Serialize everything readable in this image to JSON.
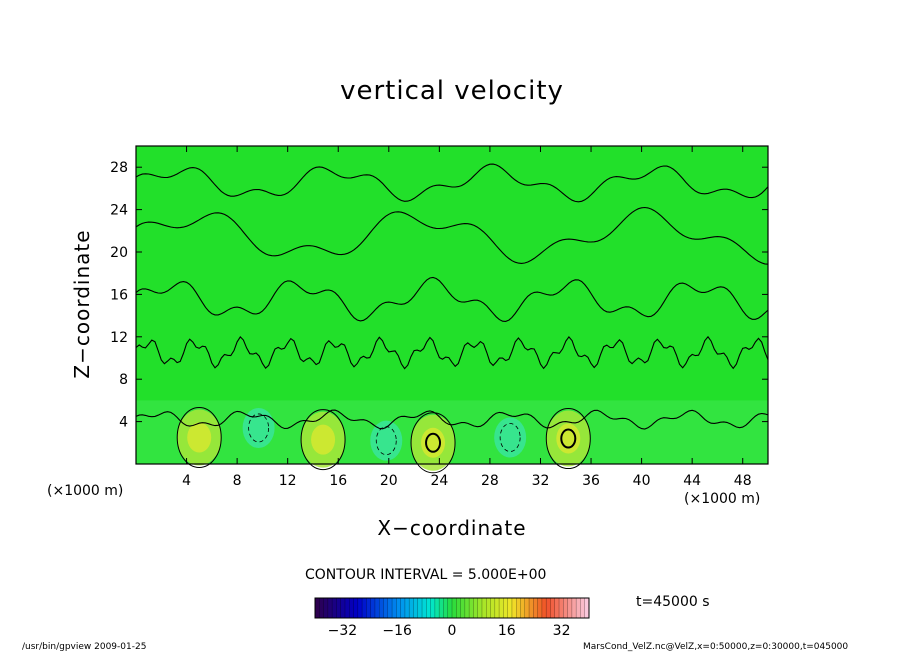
{
  "chart_data": {
    "type": "heatmap",
    "title": "vertical velocity",
    "xlabel": "X−coordinate",
    "ylabel": "Z−coordinate",
    "x_unit_left": "(×1000 m)",
    "x_unit_right": "(×1000 m)",
    "xlim": [
      0,
      50
    ],
    "ylim": [
      0,
      30
    ],
    "x_ticks": [
      "4",
      "8",
      "12",
      "16",
      "20",
      "24",
      "28",
      "32",
      "36",
      "40",
      "44",
      "48"
    ],
    "y_ticks": [
      "4",
      "8",
      "12",
      "16",
      "20",
      "24",
      "28"
    ],
    "contour_interval_label": "CONTOUR INTERVAL = 5.000E+00",
    "time_label": "t=45000 s",
    "colorbar": {
      "range": [
        -40,
        40
      ],
      "ticks": [
        "−32",
        "−16",
        "0",
        "16",
        "32"
      ]
    },
    "updraft_maxima": [
      {
        "x": 5.0,
        "z": 2.5,
        "w": 8
      },
      {
        "x": 14.8,
        "z": 2.3,
        "w": 10
      },
      {
        "x": 23.5,
        "z": 2.0,
        "w": 14
      },
      {
        "x": 34.2,
        "z": 2.4,
        "w": 12
      }
    ],
    "downdraft_minima": [
      {
        "x": 9.7,
        "z": 3.4,
        "w": -4
      },
      {
        "x": 19.8,
        "z": 2.2,
        "w": -5
      },
      {
        "x": 29.6,
        "z": 2.5,
        "w": -6
      }
    ],
    "colors": {
      "background_green": "#22e02a"
    }
  },
  "footer": {
    "left": "/usr/bin/gpview  2009-01-25",
    "right": "MarsCond_VelZ.nc@VelZ,x=0:50000,z=0:30000,t=045000"
  }
}
